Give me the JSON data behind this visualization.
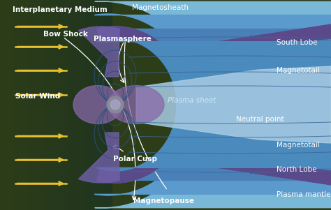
{
  "figsize": [
    4.74,
    3.01
  ],
  "dpi": 100,
  "bg_color": "#2a3a1a",
  "colors": {
    "interplanetary_bg": "#3a4a1a",
    "bow_shock_outer": "#80b8d8",
    "magnetosheath": "#6aaecc",
    "magnetopause_layer": "#4a7ab8",
    "north_south_lobe": "#4a85c0",
    "plasma_mantle": "#5a4a8a",
    "inner_lobe": "#5a9acc",
    "plasma_sheet": "#b8d8f0",
    "plasmasphere": "#9070b0",
    "earth": "#909098",
    "field_lines": "#2a5080",
    "tail_lines": "#3060a0",
    "solar_wind": "#e8c030",
    "labels": "#ffffff",
    "annotations": "#ffffff"
  },
  "labels": {
    "interplanetary": "Interplanetary Medium",
    "solar_wind": "Solar Wind",
    "bow_shock": "Bow Shock",
    "magnetopause": "Magnetopause",
    "polar_cusp": "Polar Cusp",
    "plasma_mantle": "Plasma mantle",
    "north_lobe": "North Lobe",
    "magnetotail_n": "Magnetotail",
    "neutral_point": "Neutral point",
    "plasma_sheet": "Plasma sheet",
    "south_lobe": "South Lobe",
    "magnetotail_s": "Magnetotail",
    "plasmasphere": "Plasmasphere",
    "magnetosheath": "Magnetosheath"
  }
}
